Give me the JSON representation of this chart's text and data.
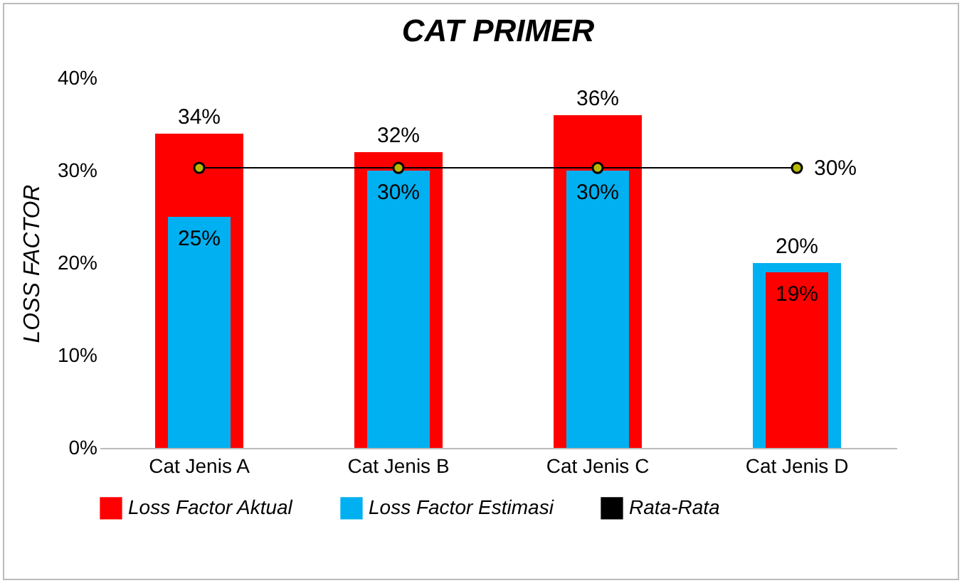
{
  "chart_data": {
    "type": "bar",
    "title": "CAT PRIMER",
    "ylabel": "LOSS FACTOR",
    "categories": [
      "Cat Jenis A",
      "Cat Jenis B",
      "Cat Jenis C",
      "Cat Jenis D"
    ],
    "series": [
      {
        "name": "Loss Factor Aktual",
        "color": "#ff0000",
        "values": [
          34,
          32,
          36,
          19
        ],
        "value_labels": [
          "34%",
          "32%",
          "36%",
          "19%"
        ]
      },
      {
        "name": "Loss Factor Estimasi",
        "color": "#00b0f0",
        "values": [
          25,
          30,
          30,
          20
        ],
        "value_labels": [
          "25%",
          "30%",
          "30%",
          "20%"
        ]
      },
      {
        "name": "Rata-Rata",
        "type": "line",
        "color": "#000000",
        "marker": "circle",
        "values": [
          30.3,
          30.3,
          30.3,
          30.3
        ],
        "value_labels": [
          null,
          null,
          null,
          "30%"
        ]
      }
    ],
    "ylim": [
      0,
      40
    ],
    "yticks": [
      {
        "value": 0,
        "label": "0%"
      },
      {
        "value": 10,
        "label": "10%"
      },
      {
        "value": 20,
        "label": "20%"
      },
      {
        "value": 30,
        "label": "30%"
      },
      {
        "value": 40,
        "label": "40%"
      }
    ],
    "grid": false,
    "legend": "bottom"
  }
}
